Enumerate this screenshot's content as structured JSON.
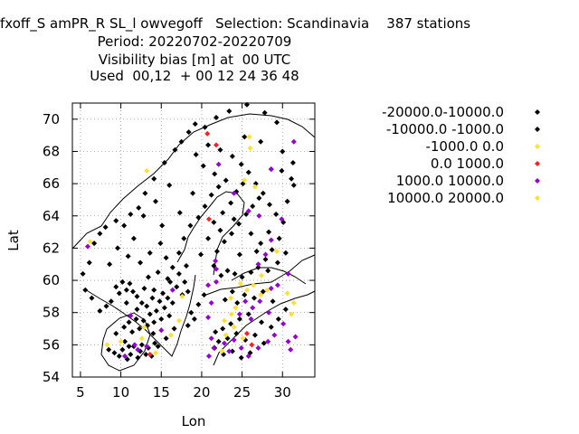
{
  "header": {
    "line1": "fxoff_S amPR_R SL_l owvegoff   Selection: Scandinavia    387 stations",
    "line2": "Period: 20220702-20220709",
    "line3": "Visibility bias [m] at  00 UTC",
    "line4": "Used  00,12  + 00 12 24 36 48"
  },
  "chart_data": {
    "type": "scatter",
    "title": "",
    "xlabel": "Lon",
    "ylabel": "Lat",
    "xlim": [
      4,
      34
    ],
    "ylim": [
      54,
      71
    ],
    "xticks": [
      5,
      10,
      15,
      20,
      25,
      30
    ],
    "yticks": [
      54,
      56,
      58,
      60,
      62,
      64,
      66,
      68,
      70
    ],
    "grid": true,
    "legend_position": "right",
    "series": [
      {
        "name": "-20000.0-10000.0",
        "color": "#000000",
        "points": []
      },
      {
        "name": "-10000.0 -1000.0",
        "color": "#000000",
        "points": [
          [
            9.2,
            55.5
          ],
          [
            9.8,
            55.3
          ],
          [
            10.2,
            55.7
          ],
          [
            10.5,
            56.2
          ],
          [
            10.8,
            55.1
          ],
          [
            11.2,
            55.4
          ],
          [
            11.6,
            55.9
          ],
          [
            12.1,
            55.2
          ],
          [
            12.4,
            55.6
          ],
          [
            12.6,
            56.0
          ],
          [
            13.1,
            55.4
          ],
          [
            13.4,
            55.8
          ],
          [
            13.8,
            55.3
          ],
          [
            14.2,
            56.1
          ],
          [
            14.6,
            55.9
          ],
          [
            10.4,
            57.1
          ],
          [
            11.0,
            57.4
          ],
          [
            11.4,
            56.8
          ],
          [
            11.9,
            57.6
          ],
          [
            12.3,
            57.0
          ],
          [
            12.8,
            57.5
          ],
          [
            13.3,
            57.2
          ],
          [
            13.6,
            57.9
          ],
          [
            14.1,
            57.4
          ],
          [
            14.4,
            58.1
          ],
          [
            15.0,
            57.6
          ],
          [
            15.4,
            58.3
          ],
          [
            16.0,
            57.8
          ],
          [
            16.4,
            58.6
          ],
          [
            15.8,
            58.9
          ],
          [
            14.8,
            58.7
          ],
          [
            13.9,
            58.9
          ],
          [
            13.2,
            58.4
          ],
          [
            12.6,
            58.6
          ],
          [
            12.0,
            59.0
          ],
          [
            11.5,
            59.3
          ],
          [
            11.1,
            59.8
          ],
          [
            10.7,
            59.4
          ],
          [
            10.2,
            59.9
          ],
          [
            9.8,
            59.2
          ],
          [
            9.4,
            59.6
          ],
          [
            8.8,
            58.7
          ],
          [
            8.2,
            58.4
          ],
          [
            7.4,
            58.1
          ],
          [
            6.4,
            58.9
          ],
          [
            5.6,
            59.4
          ],
          [
            5.3,
            60.4
          ],
          [
            6.1,
            61.1
          ],
          [
            6.7,
            62.3
          ],
          [
            7.4,
            62.9
          ],
          [
            8.1,
            63.3
          ],
          [
            9.4,
            63.7
          ],
          [
            10.4,
            63.4
          ],
          [
            11.2,
            64.1
          ],
          [
            12.2,
            64.5
          ],
          [
            13.0,
            65.4
          ],
          [
            14.1,
            66.3
          ],
          [
            15.4,
            67.3
          ],
          [
            16.7,
            68.1
          ],
          [
            17.5,
            68.6
          ],
          [
            18.4,
            69.2
          ],
          [
            19.2,
            69.7
          ],
          [
            20.4,
            69.5
          ],
          [
            21.8,
            70.1
          ],
          [
            23.4,
            70.5
          ],
          [
            25.6,
            70.9
          ],
          [
            27.8,
            70.4
          ],
          [
            29.3,
            69.8
          ],
          [
            12.4,
            61.1
          ],
          [
            13.6,
            61.7
          ],
          [
            14.9,
            62.3
          ],
          [
            15.6,
            61.4
          ],
          [
            16.4,
            60.8
          ],
          [
            17.2,
            60.4
          ],
          [
            17.9,
            59.9
          ],
          [
            18.3,
            59.3
          ],
          [
            17.6,
            59.1
          ],
          [
            16.9,
            59.6
          ],
          [
            15.8,
            60.1
          ],
          [
            14.6,
            60.5
          ],
          [
            13.4,
            60.2
          ],
          [
            14.1,
            59.4
          ],
          [
            15.2,
            59.2
          ],
          [
            16.1,
            59.9
          ],
          [
            17.2,
            61.7
          ],
          [
            17.8,
            62.6
          ],
          [
            18.6,
            63.4
          ],
          [
            19.6,
            63.9
          ],
          [
            20.4,
            64.6
          ],
          [
            21.2,
            65.3
          ],
          [
            22.1,
            65.8
          ],
          [
            23.0,
            66.2
          ],
          [
            21.6,
            66.6
          ],
          [
            20.2,
            67.1
          ],
          [
            19.3,
            67.8
          ],
          [
            20.8,
            68.4
          ],
          [
            22.3,
            68.1
          ],
          [
            23.8,
            67.7
          ],
          [
            24.9,
            67.2
          ],
          [
            25.8,
            66.7
          ],
          [
            26.7,
            66.0
          ],
          [
            27.6,
            65.4
          ],
          [
            28.4,
            64.7
          ],
          [
            29.2,
            64.1
          ],
          [
            30.1,
            63.6
          ],
          [
            29.6,
            62.6
          ],
          [
            28.7,
            61.9
          ],
          [
            27.9,
            61.3
          ],
          [
            27.0,
            60.8
          ],
          [
            26.1,
            60.5
          ],
          [
            25.0,
            60.2
          ],
          [
            24.1,
            60.4
          ],
          [
            23.2,
            60.6
          ],
          [
            22.4,
            60.3
          ],
          [
            21.5,
            60.9
          ],
          [
            21.9,
            61.8
          ],
          [
            22.8,
            62.4
          ],
          [
            23.7,
            62.9
          ],
          [
            24.6,
            63.5
          ],
          [
            25.5,
            64.1
          ],
          [
            26.3,
            64.6
          ],
          [
            27.1,
            65.1
          ],
          [
            22.3,
            63.1
          ],
          [
            21.5,
            63.6
          ],
          [
            22.6,
            64.2
          ],
          [
            23.6,
            64.8
          ],
          [
            24.3,
            65.5
          ],
          [
            25.1,
            66.0
          ],
          [
            26.1,
            62.9
          ],
          [
            27.3,
            62.3
          ],
          [
            28.2,
            60.6
          ],
          [
            29.4,
            61.1
          ],
          [
            30.4,
            61.7
          ],
          [
            23.8,
            59.3
          ],
          [
            22.9,
            58.8
          ],
          [
            24.4,
            58.6
          ],
          [
            25.3,
            59.1
          ],
          [
            26.5,
            58.9
          ],
          [
            27.6,
            59.3
          ],
          [
            25.8,
            57.9
          ],
          [
            24.7,
            57.6
          ],
          [
            23.6,
            57.3
          ],
          [
            22.6,
            57.0
          ],
          [
            21.7,
            56.8
          ],
          [
            22.1,
            56.2
          ],
          [
            23.2,
            56.4
          ],
          [
            24.3,
            56.7
          ],
          [
            25.4,
            56.3
          ],
          [
            26.6,
            56.6
          ],
          [
            27.7,
            56.1
          ],
          [
            26.0,
            55.5
          ],
          [
            24.9,
            55.2
          ],
          [
            23.8,
            55.6
          ],
          [
            22.7,
            55.4
          ],
          [
            21.6,
            55.8
          ],
          [
            28.6,
            57.1
          ],
          [
            29.5,
            57.6
          ],
          [
            30.4,
            58.2
          ],
          [
            28.8,
            58.7
          ],
          [
            27.4,
            57.4
          ],
          [
            19.1,
            57.6
          ],
          [
            18.3,
            57.2
          ],
          [
            18.7,
            58.0
          ],
          [
            20.3,
            59.1
          ],
          [
            19.6,
            58.5
          ],
          [
            12.8,
            64.0
          ],
          [
            14.3,
            64.9
          ],
          [
            16.0,
            65.9
          ],
          [
            17.3,
            64.2
          ],
          [
            18.9,
            65.4
          ],
          [
            9.6,
            62.0
          ],
          [
            8.6,
            61.0
          ],
          [
            10.9,
            61.5
          ],
          [
            11.6,
            62.6
          ],
          [
            15.1,
            63.4
          ],
          [
            24.0,
            63.8
          ],
          [
            30.6,
            64.9
          ],
          [
            31.1,
            66.3
          ],
          [
            30.0,
            68.0
          ],
          [
            28.6,
            66.9
          ],
          [
            27.3,
            68.6
          ],
          [
            25.3,
            68.9
          ],
          [
            14.0,
            56.7
          ],
          [
            15.6,
            56.4
          ],
          [
            16.6,
            57.0
          ],
          [
            12.0,
            58.2
          ],
          [
            10.7,
            58.6
          ],
          [
            8.5,
            55.7
          ],
          [
            9.4,
            56.7
          ],
          [
            11.0,
            55.9
          ],
          [
            12.9,
            59.5
          ],
          [
            18.1,
            60.9
          ],
          [
            19.9,
            61.6
          ],
          [
            20.8,
            62.6
          ],
          [
            24.7,
            61.6
          ],
          [
            26.8,
            61.8
          ],
          [
            28.3,
            63.0
          ],
          [
            29.9,
            66.8
          ],
          [
            31.4,
            65.9
          ],
          [
            31.3,
            67.3
          ]
        ]
      },
      {
        "name": "-1000.0 0.0",
        "color": "#ffe033",
        "points": [
          [
            6.2,
            62.4
          ],
          [
            13.2,
            66.8
          ],
          [
            25.9,
            68.9
          ],
          [
            26.0,
            68.2
          ],
          [
            25.3,
            66.2
          ],
          [
            26.6,
            65.8
          ],
          [
            27.4,
            60.3
          ],
          [
            29.3,
            61.8
          ],
          [
            25.6,
            59.4
          ],
          [
            24.8,
            59.8
          ],
          [
            26.4,
            59.7
          ],
          [
            27.3,
            59.1
          ],
          [
            24.2,
            58.3
          ],
          [
            23.7,
            57.9
          ],
          [
            22.8,
            57.5
          ],
          [
            24.0,
            57.1
          ],
          [
            25.1,
            56.4
          ],
          [
            23.0,
            56.6
          ],
          [
            22.5,
            55.6
          ],
          [
            31.4,
            58.6
          ],
          [
            31.1,
            57.9
          ],
          [
            30.6,
            59.2
          ],
          [
            28.1,
            59.4
          ],
          [
            17.2,
            57.5
          ],
          [
            16.2,
            56.6
          ],
          [
            14.3,
            55.5
          ],
          [
            10.0,
            56.2
          ],
          [
            12.6,
            56.4
          ],
          [
            12.9,
            57.1
          ],
          [
            8.3,
            56.0
          ],
          [
            17.6,
            59.0
          ],
          [
            23.6,
            58.9
          ]
        ]
      },
      {
        "name": "0.0 1000.0",
        "color": "#ff2020",
        "points": [
          [
            20.7,
            69.1
          ],
          [
            21.8,
            68.4
          ],
          [
            20.9,
            63.8
          ],
          [
            26.2,
            56.0
          ],
          [
            25.6,
            56.7
          ],
          [
            13.6,
            55.4
          ]
        ]
      },
      {
        "name": "1000.0 10000.0",
        "color": "#9400d3",
        "points": [
          [
            5.9,
            62.1
          ],
          [
            22.1,
            67.2
          ],
          [
            28.6,
            66.9
          ],
          [
            29.9,
            63.8
          ],
          [
            28.6,
            62.5
          ],
          [
            27.9,
            61.6
          ],
          [
            27.0,
            61.0
          ],
          [
            21.7,
            61.2
          ],
          [
            21.8,
            60.7
          ],
          [
            21.8,
            59.9
          ],
          [
            20.8,
            59.7
          ],
          [
            21.2,
            58.6
          ],
          [
            20.8,
            57.7
          ],
          [
            21.2,
            56.4
          ],
          [
            21.5,
            55.8
          ],
          [
            20.9,
            55.3
          ],
          [
            22.8,
            56.1
          ],
          [
            23.4,
            55.6
          ],
          [
            24.0,
            56.3
          ],
          [
            24.9,
            55.8
          ],
          [
            25.8,
            55.3
          ],
          [
            27.0,
            55.8
          ],
          [
            28.2,
            56.2
          ],
          [
            29.0,
            56.6
          ],
          [
            30.1,
            57.3
          ],
          [
            30.7,
            56.2
          ],
          [
            31.6,
            56.5
          ],
          [
            31.0,
            55.7
          ],
          [
            26.3,
            58.3
          ],
          [
            27.2,
            58.7
          ],
          [
            28.6,
            59.5
          ],
          [
            29.4,
            59.7
          ],
          [
            28.3,
            58.0
          ],
          [
            26.1,
            57.6
          ],
          [
            24.7,
            57.9
          ],
          [
            25.4,
            58.7
          ],
          [
            31.4,
            68.6
          ],
          [
            11.7,
            56.0
          ],
          [
            12.1,
            55.7
          ],
          [
            13.2,
            55.9
          ],
          [
            10.5,
            55.3
          ],
          [
            11.2,
            57.8
          ],
          [
            15.0,
            56.9
          ],
          [
            16.4,
            59.4
          ],
          [
            25.8,
            64.3
          ],
          [
            24.0,
            65.4
          ],
          [
            27.1,
            64.0
          ],
          [
            30.7,
            60.4
          ]
        ]
      },
      {
        "name": "10000.0 20000.0",
        "color": "#ffe033",
        "points": []
      }
    ]
  },
  "legend": {
    "entries": [
      "-20000.0-10000.0",
      "-10000.0 -1000.0",
      "-1000.0 0.0",
      "0.0 1000.0",
      "1000.0 10000.0",
      "10000.0 20000.0"
    ],
    "colors": [
      "#000000",
      "#000000",
      "#ffe033",
      "#ff2020",
      "#9400d3",
      "#ffe033"
    ]
  }
}
